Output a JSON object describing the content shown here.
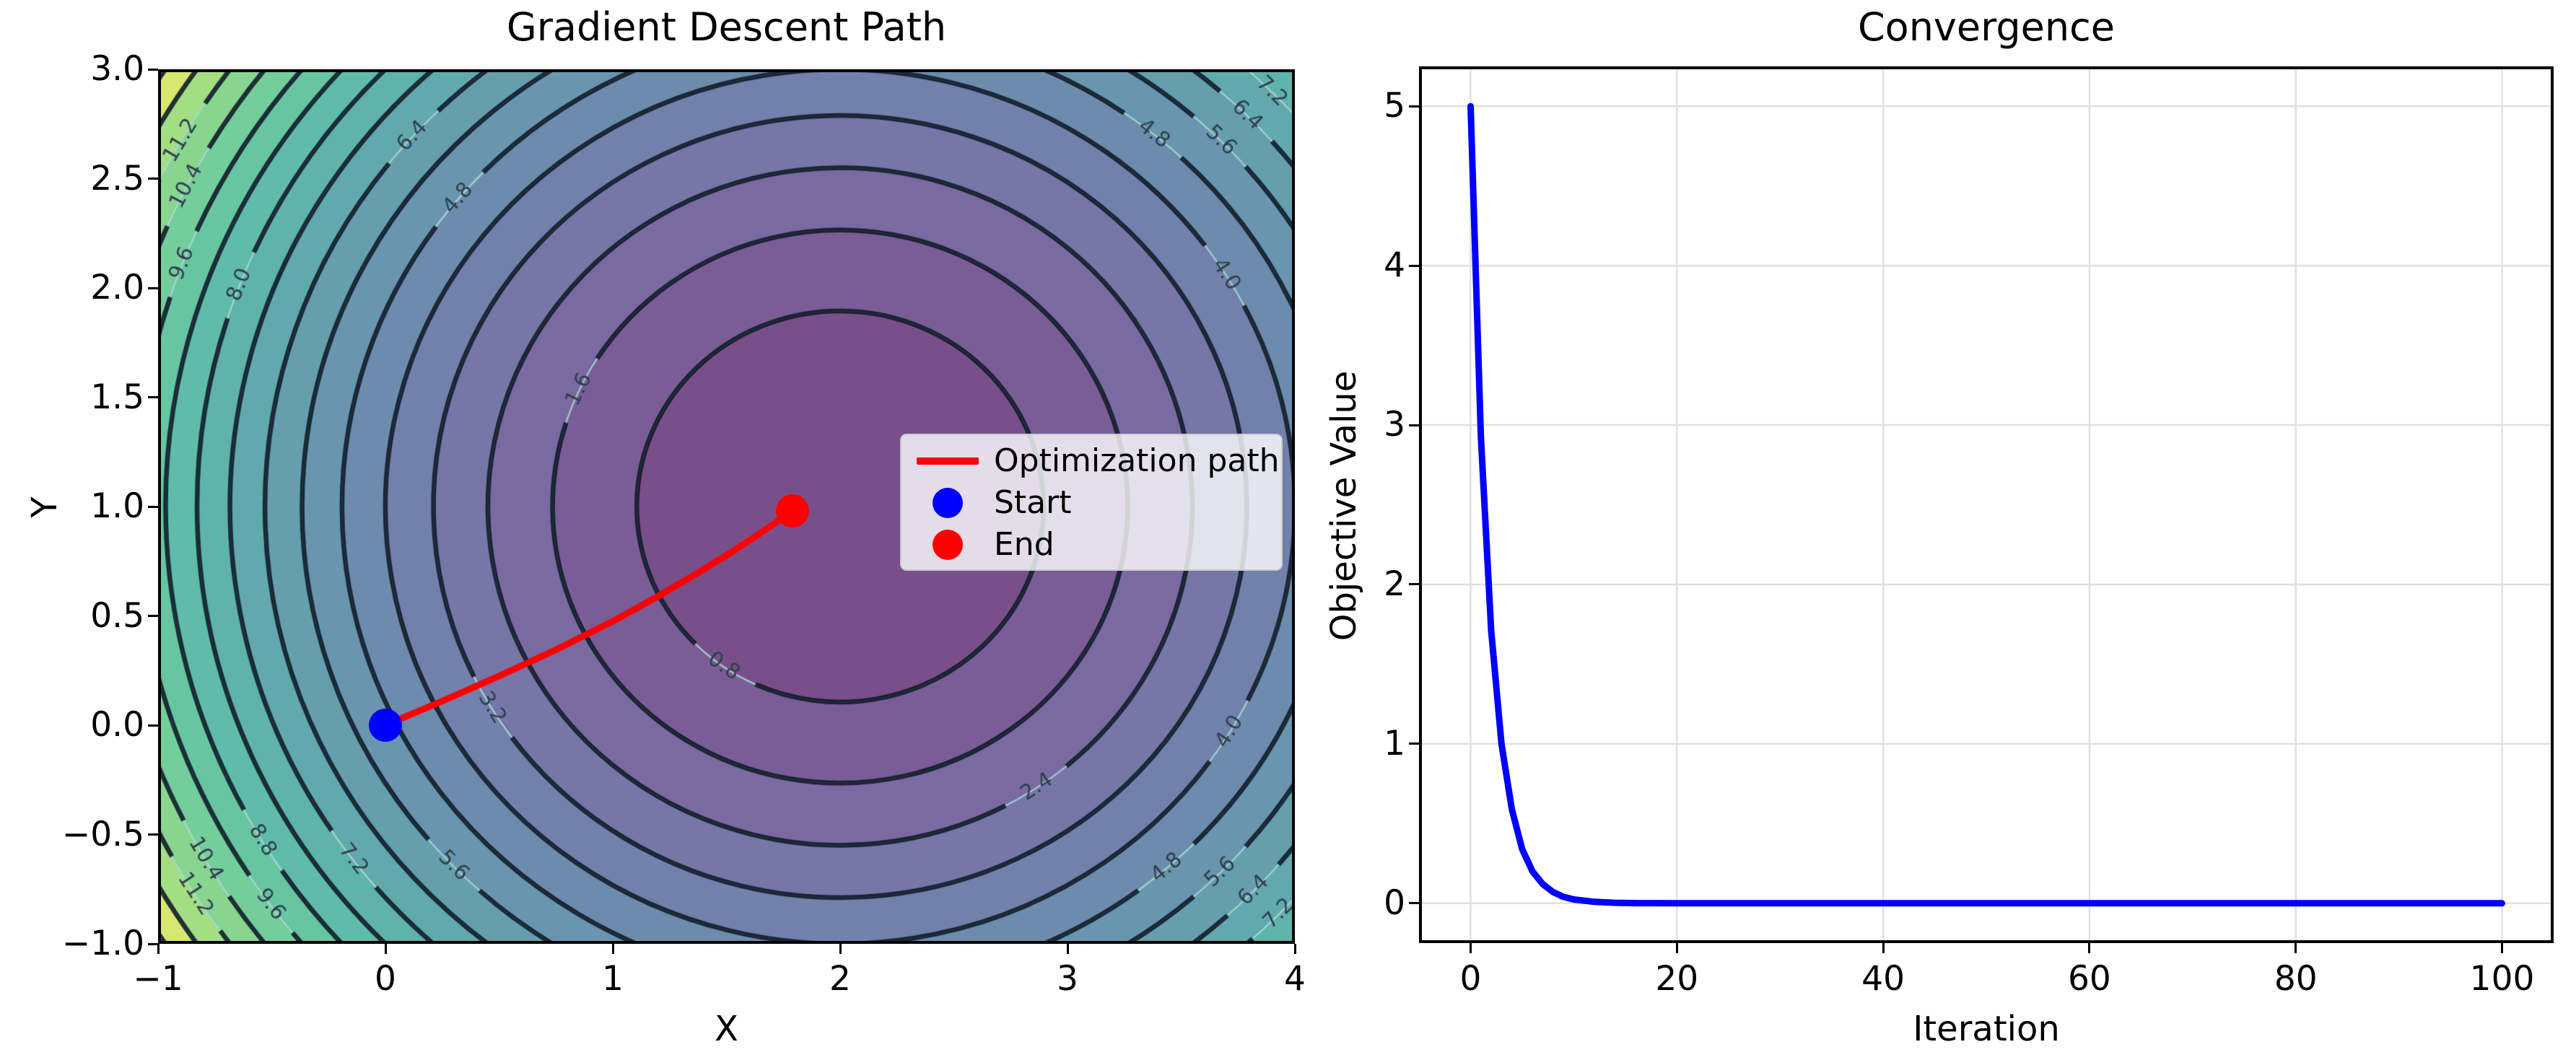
{
  "figure": {
    "background": "#ffffff"
  },
  "chart_data": [
    {
      "type": "contour",
      "title": "Gradient Descent Path",
      "xlabel": "X",
      "ylabel": "Y",
      "xlim": [
        -1,
        4
      ],
      "ylim": [
        -1,
        3
      ],
      "xtick_values": [
        -1,
        0,
        1,
        2,
        3,
        4
      ],
      "xtick_labels": [
        "−1",
        "0",
        "1",
        "2",
        "3",
        "4"
      ],
      "ytick_values": [
        3.0,
        2.5,
        2.0,
        1.5,
        1.0,
        0.5,
        0.0,
        -0.5,
        -1.0
      ],
      "ytick_labels": [
        "3.0",
        "2.5",
        "2.0",
        "1.5",
        "1.0",
        "0.5",
        "0.0",
        "−0.5",
        "−1.0"
      ],
      "objective_function": "(x-2)^2 + (y-1)^2",
      "minimum_point": [
        2,
        1
      ],
      "contour_level_step": 0.8,
      "contour_level_max": 12.8,
      "value_max": 13.0,
      "colormap": "viridis",
      "fill_alpha": 0.72,
      "colormap_stops": [
        "#440154",
        "#482878",
        "#3e4a89",
        "#31688e",
        "#26828e",
        "#1f9e89",
        "#35b779",
        "#6dcd59",
        "#fde725"
      ],
      "contour_line_color": "rgba(8,18,32,0.85)",
      "contour_leader_color": "rgba(170,215,210,0.9)",
      "contour_label_color": "#2f3e4c",
      "contour_labels": [
        {
          "level": 0.8,
          "text": "0.8",
          "angles_deg": [
            -125
          ]
        },
        {
          "level": 1.6,
          "text": "1.6",
          "angles_deg": [
            155
          ]
        },
        {
          "level": 2.4,
          "text": "2.4",
          "angles_deg": [
            -56
          ]
        },
        {
          "level": 3.2,
          "text": "3.2",
          "angles_deg": [
            -149
          ]
        },
        {
          "level": 4.0,
          "text": "4.0",
          "angles_deg": [
            32,
            -31
          ]
        },
        {
          "level": 4.8,
          "text": "4.8",
          "angles_deg": [
            51,
            140,
            -49
          ]
        },
        {
          "level": 5.6,
          "text": "5.6",
          "angles_deg": [
            45,
            -45,
            -136
          ]
        },
        {
          "level": 6.4,
          "text": "6.4",
          "angles_deg": [
            45,
            138,
            -44
          ]
        },
        {
          "level": 7.2,
          "text": "7.2",
          "angles_deg": [
            45,
            -44,
            -143
          ]
        },
        {
          "level": 8.0,
          "text": "8.0",
          "angles_deg": [
            159
          ]
        },
        {
          "level": 8.8,
          "text": "8.8",
          "angles_deg": [
            -149
          ]
        },
        {
          "level": 9.6,
          "text": "9.6",
          "angles_deg": [
            159,
            -144
          ]
        },
        {
          "level": 10.4,
          "text": "10.4",
          "angles_deg": [
            153,
            -150
          ]
        },
        {
          "level": 11.2,
          "text": "11.2",
          "angles_deg": [
            150,
            -148
          ]
        }
      ],
      "path": {
        "label": "Optimization path",
        "color": "#ff0000",
        "points": [
          [
            0.0,
            0.0
          ],
          [
            0.25,
            0.11
          ],
          [
            0.5,
            0.225
          ],
          [
            0.75,
            0.345
          ],
          [
            1.0,
            0.475
          ],
          [
            1.2,
            0.59
          ],
          [
            1.38,
            0.7
          ],
          [
            1.52,
            0.79
          ],
          [
            1.63,
            0.865
          ],
          [
            1.71,
            0.922
          ],
          [
            1.76,
            0.957
          ],
          [
            1.79,
            0.98
          ]
        ]
      },
      "markers": [
        {
          "label": "Start",
          "color": "#0000ff",
          "point": [
            0.0,
            0.0
          ]
        },
        {
          "label": "End",
          "color": "#ff0000",
          "point": [
            1.79,
            0.98
          ]
        }
      ],
      "legend": {
        "items": [
          {
            "swatch": "line",
            "color": "#ff0000",
            "label": "Optimization path"
          },
          {
            "swatch": "dot",
            "color": "#0000ff",
            "label": "Start"
          },
          {
            "swatch": "dot",
            "color": "#ff0000",
            "label": "End"
          }
        ]
      }
    },
    {
      "type": "line",
      "title": "Convergence",
      "xlabel": "Iteration",
      "ylabel": "Objective Value",
      "xlim": [
        -5,
        105
      ],
      "ylim": [
        -0.25,
        5.25
      ],
      "xtick_values": [
        0,
        20,
        40,
        60,
        80,
        100
      ],
      "xtick_labels": [
        "0",
        "20",
        "40",
        "60",
        "80",
        "100"
      ],
      "ytick_values": [
        0,
        1,
        2,
        3,
        4,
        5
      ],
      "ytick_labels": [
        "0",
        "1",
        "2",
        "3",
        "4",
        "5"
      ],
      "grid": true,
      "grid_color": "#e0e0e0",
      "series": [
        {
          "name": "Objective Value",
          "color": "#0000ff",
          "points": [
            [
              0,
              5.0
            ],
            [
              1,
              2.93
            ],
            [
              2,
              1.71
            ],
            [
              3,
              1.0
            ],
            [
              4,
              0.59
            ],
            [
              5,
              0.34
            ],
            [
              6,
              0.2
            ],
            [
              7,
              0.12
            ],
            [
              8,
              0.07
            ],
            [
              9,
              0.04
            ],
            [
              10,
              0.024
            ],
            [
              12,
              0.009
            ],
            [
              14,
              0.003
            ],
            [
              16,
              0.001
            ],
            [
              20,
              0.0
            ],
            [
              30,
              0.0
            ],
            [
              40,
              0.0
            ],
            [
              50,
              0.0
            ],
            [
              60,
              0.0
            ],
            [
              70,
              0.0
            ],
            [
              80,
              0.0
            ],
            [
              90,
              0.0
            ],
            [
              100,
              0.0
            ]
          ]
        }
      ]
    }
  ]
}
